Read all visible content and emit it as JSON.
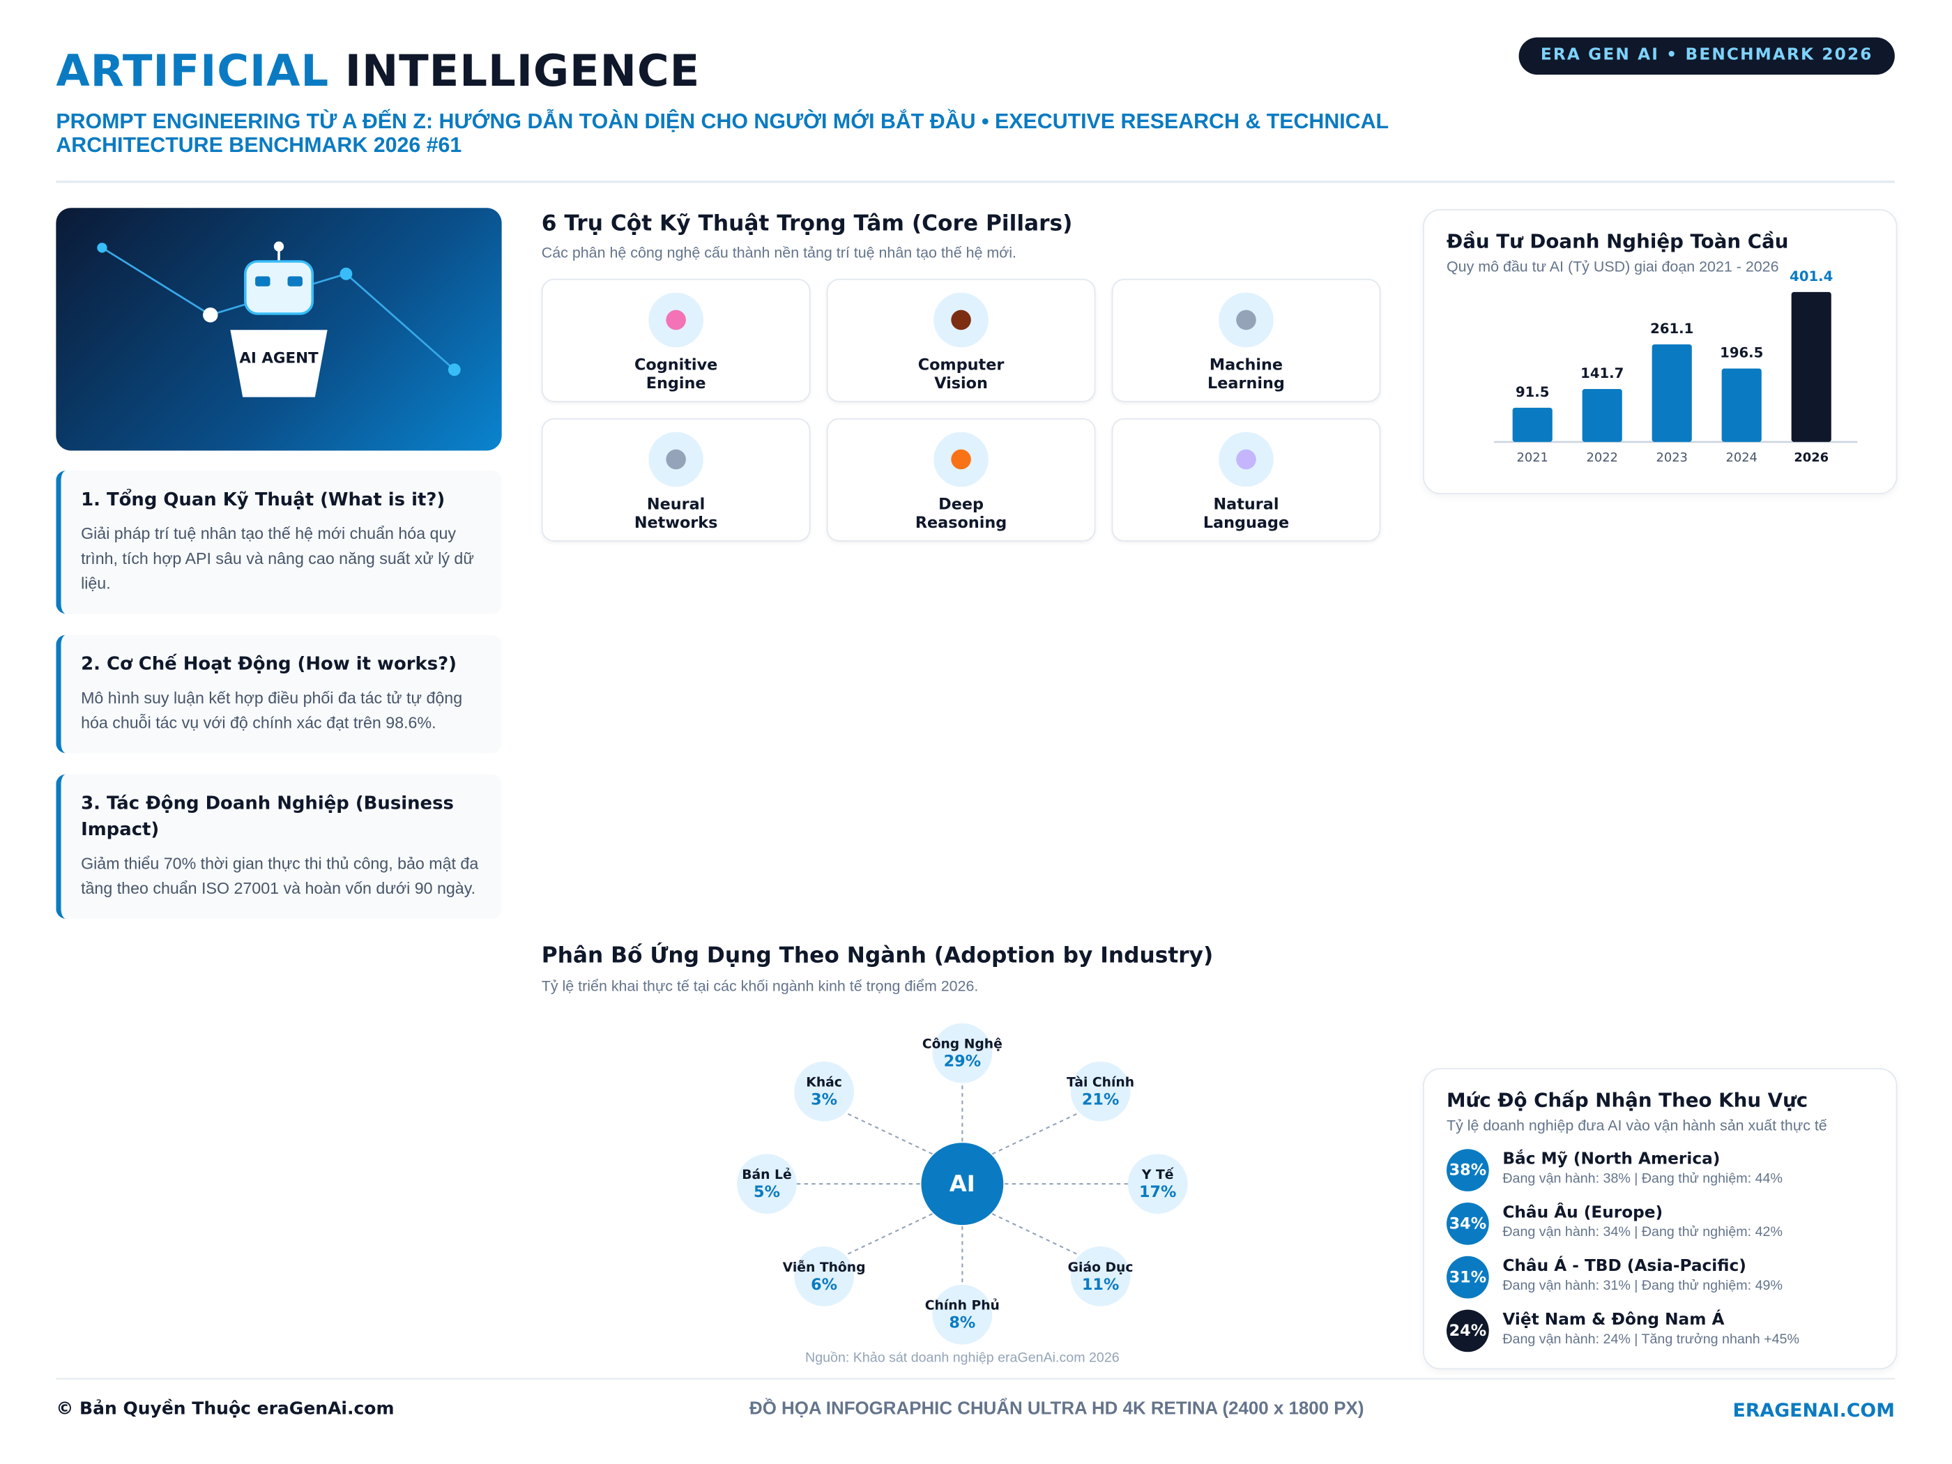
{
  "header": {
    "title_accent": "ARTIFICIAL",
    "title_main": "INTELLIGENCE",
    "subtitle": "PROMPT ENGINEERING TỪ A ĐẾN Z: HƯỚNG DẪN TOÀN DIỆN CHO NGƯỜI MỚI BẮT ĐẦU • EXECUTIVE RESEARCH & TECHNICAL ARCHITECTURE BENCHMARK 2026 #61",
    "badge": "ERA GEN AI • BENCHMARK 2026"
  },
  "hero": {
    "label": "AI AGENT"
  },
  "sections": [
    {
      "title": "1. Tổng Quan Kỹ Thuật (What is it?)",
      "body": "Giải pháp trí tuệ nhân tạo thế hệ mới chuẩn hóa quy trình, tích hợp API sâu và nâng cao năng suất xử lý dữ liệu."
    },
    {
      "title": "2. Cơ Chế Hoạt Động (How it works?)",
      "body": "Mô hình suy luận kết hợp điều phối đa tác tử tự động hóa chuỗi tác vụ với độ chính xác đạt trên 98.6%."
    },
    {
      "title": "3. Tác Động Doanh Nghiệp (Business Impact)",
      "body": "Giảm thiểu 70% thời gian thực thi thủ công, bảo mật đa tầng theo chuẩn ISO 27001 và hoàn vốn dưới 90 ngày."
    }
  ],
  "pillars": {
    "title": "6 Trụ Cột Kỹ Thuật Trọng Tâm (Core Pillars)",
    "subtitle": "Các phân hệ công nghệ cấu thành nền tảng trí tuệ nhân tạo thế hệ mới.",
    "items": [
      "Cognitive Engine",
      "Computer Vision",
      "Machine Learning",
      "Neural Networks",
      "Deep Reasoning",
      "Natural Language"
    ]
  },
  "regions": {
    "title": "Mức Độ Chấp Nhận Theo Khu Vực",
    "subtitle": "Tỷ lệ doanh nghiệp đưa AI vào vận hành sản xuất thực tế",
    "items": [
      {
        "badge": "38%",
        "name": "Bắc Mỹ (North America)",
        "detail": "Đang vận hành: 38% | Đang thử nghiệm: 44%"
      },
      {
        "badge": "34%",
        "name": "Châu Âu (Europe)",
        "detail": "Đang vận hành: 34% | Đang thử nghiệm: 42%"
      },
      {
        "badge": "31%",
        "name": "Châu Á - TBD (Asia-Pacific)",
        "detail": "Đang vận hành: 31% | Đang thử nghiệm: 49%"
      },
      {
        "badge": "24%",
        "name": "Việt Nam & Đông Nam Á",
        "detail": "Đang vận hành: 24% | Tăng trưởng nhanh +45%"
      }
    ]
  },
  "footer": {
    "left": "© Bản Quyền Thuộc eraGenAi.com",
    "center": "ĐỒ HỌA INFOGRAPHIC CHUẨN ULTRA HD 4K RETINA (2400 x 1800 PX)",
    "right": "ERAGENAI.COM"
  },
  "chart_data": [
    {
      "type": "bar",
      "title": "Đầu Tư Doanh Nghiệp Toàn Cầu",
      "subtitle": "Quy mô đầu tư AI (Tỷ USD) giai đoạn 2021 - 2026",
      "categories": [
        "2021",
        "2022",
        "2023",
        "2024",
        "2026"
      ],
      "values": [
        91.5,
        141.7,
        261.1,
        196.5,
        401.4
      ],
      "colors": [
        "#0a7bc2",
        "#0a7bc2",
        "#0a7bc2",
        "#0a7bc2",
        "#0f172a"
      ],
      "ylim": [
        0,
        420
      ]
    },
    {
      "type": "radial",
      "title": "Phân Bố Ứng Dụng Theo Ngành (Adoption by Industry)",
      "subtitle": "Tỷ lệ triển khai thực tế tại các khối ngành kinh tế trọng điểm 2026.",
      "center_label": "AI",
      "categories": [
        "Công Nghệ",
        "Tài Chính",
        "Y Tế",
        "Giáo Dục",
        "Chính Phủ",
        "Viễn Thông",
        "Bán Lẻ",
        "Khác"
      ],
      "values": [
        29,
        21,
        17,
        11,
        8,
        6,
        5,
        3
      ],
      "value_labels": [
        "29%",
        "21%",
        "17%",
        "11%",
        "8%",
        "6%",
        "5%",
        "3%"
      ],
      "color": "#0a7bc2",
      "source": "Nguồn: Khảo sát doanh nghiệp eraGenAi.com 2026"
    }
  ]
}
